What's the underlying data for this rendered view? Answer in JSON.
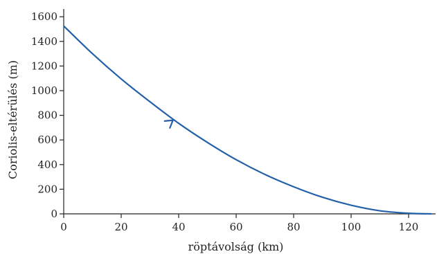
{
  "chart_data": {
    "type": "line",
    "title": "",
    "xlabel": "röptávolság (km)",
    "ylabel": "Coriolis-eltérülés (m)",
    "xlim": [
      0,
      130
    ],
    "ylim": [
      0,
      1700
    ],
    "x_ticks": [
      0,
      20,
      40,
      60,
      80,
      100,
      120
    ],
    "y_ticks": [
      0,
      200,
      400,
      600,
      800,
      1000,
      1200,
      1400,
      1600
    ],
    "grid": false,
    "legend": "none",
    "series": [
      {
        "color": "#2360a8",
        "x": [
          0,
          10,
          20,
          30,
          40,
          50,
          60,
          70,
          80,
          90,
          100,
          110,
          120,
          128
        ],
        "y": [
          1525,
          1300,
          1095,
          910,
          735,
          580,
          440,
          320,
          220,
          135,
          70,
          25,
          5,
          0
        ]
      }
    ],
    "annotations": [
      {
        "type": "arrow",
        "direction": "toward-origin",
        "at_x": 38,
        "at_y": 760
      }
    ]
  }
}
